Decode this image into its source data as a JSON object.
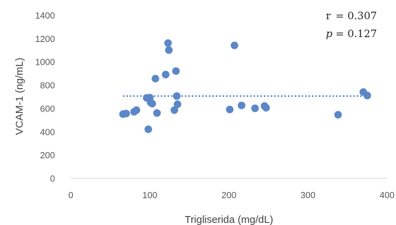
{
  "chart_data": {
    "type": "scatter",
    "title": "",
    "xlabel": "Trigliserida (mg/dL)",
    "ylabel": "VCAM-1 (ng/mL)",
    "xlim": [
      0,
      400
    ],
    "ylim": [
      0,
      1400
    ],
    "xticks": [
      "0",
      "100",
      "200",
      "300",
      "400"
    ],
    "yticks": [
      "0",
      "200",
      "400",
      "600",
      "800",
      "1000",
      "1200",
      "1400"
    ],
    "grid": false,
    "legend": "none",
    "series": [
      {
        "color": "#5b87c7",
        "points": [
          {
            "x": 66,
            "y": 550
          },
          {
            "x": 70,
            "y": 555
          },
          {
            "x": 80,
            "y": 570
          },
          {
            "x": 83,
            "y": 585
          },
          {
            "x": 96,
            "y": 690
          },
          {
            "x": 98,
            "y": 420
          },
          {
            "x": 100,
            "y": 692
          },
          {
            "x": 101,
            "y": 650
          },
          {
            "x": 103,
            "y": 640
          },
          {
            "x": 107,
            "y": 855
          },
          {
            "x": 109,
            "y": 560
          },
          {
            "x": 120,
            "y": 890
          },
          {
            "x": 123,
            "y": 1160
          },
          {
            "x": 124,
            "y": 1100
          },
          {
            "x": 131,
            "y": 585
          },
          {
            "x": 133,
            "y": 920
          },
          {
            "x": 134,
            "y": 705
          },
          {
            "x": 135,
            "y": 635
          },
          {
            "x": 201,
            "y": 590
          },
          {
            "x": 207,
            "y": 1140
          },
          {
            "x": 216,
            "y": 625
          },
          {
            "x": 233,
            "y": 600
          },
          {
            "x": 245,
            "y": 620
          },
          {
            "x": 247,
            "y": 605
          },
          {
            "x": 338,
            "y": 545
          },
          {
            "x": 370,
            "y": 740
          },
          {
            "x": 375,
            "y": 710
          }
        ]
      }
    ],
    "trendline": {
      "style": "dotted",
      "color": "#5b87c7",
      "y": 705,
      "x_start": 66,
      "x_end": 375
    },
    "annotations": {
      "r_label": "r",
      "r_value": "= 0.307",
      "p_label": "p",
      "p_value": "= 0.127"
    }
  }
}
